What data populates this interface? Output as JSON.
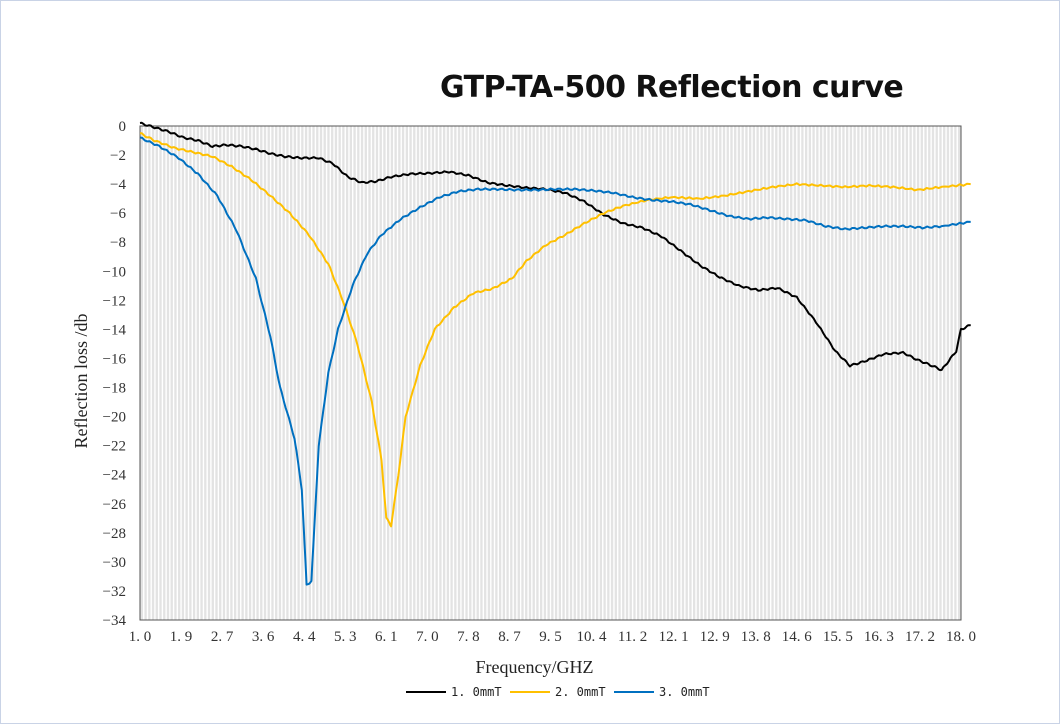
{
  "chart_data": {
    "type": "line",
    "title": "GTP-TA-500 Reflection curve",
    "xlabel": "Frequency/GHZ",
    "ylabel": "Reflection loss /db",
    "xlim": [
      1.0,
      18.0
    ],
    "ylim": [
      -34,
      0
    ],
    "x_tick_labels": [
      "1. 0",
      "1. 9",
      "2. 7",
      "3. 6",
      "4. 4",
      "5. 3",
      "6. 1",
      "7. 0",
      "7. 8",
      "8. 7",
      "9. 5",
      "10. 4",
      "11. 2",
      "12. 1",
      "12. 9",
      "13. 8",
      "14. 6",
      "15. 5",
      "16. 3",
      "17. 2",
      "18. 0"
    ],
    "y_ticks": [
      0,
      -2,
      -4,
      -6,
      -8,
      -10,
      -12,
      -14,
      -16,
      -18,
      -20,
      -22,
      -24,
      -26,
      -28,
      -30,
      -32,
      -34
    ],
    "y_tick_labels": [
      "0",
      "−2",
      "−4",
      "−6",
      "−8",
      "−10",
      "−12",
      "−14",
      "−16",
      "−18",
      "−20",
      "−22",
      "−24",
      "−26",
      "−28",
      "−30",
      "−32",
      "−34"
    ],
    "grid": "vertical",
    "legend_position": "bottom",
    "series": [
      {
        "name": "1. 0mmT",
        "color": "#000000",
        "points": [
          [
            1.0,
            0.2
          ],
          [
            1.3,
            -0.1
          ],
          [
            1.6,
            -0.4
          ],
          [
            1.9,
            -0.8
          ],
          [
            2.2,
            -1.0
          ],
          [
            2.5,
            -1.4
          ],
          [
            2.8,
            -1.3
          ],
          [
            3.1,
            -1.4
          ],
          [
            3.4,
            -1.6
          ],
          [
            3.7,
            -1.9
          ],
          [
            4.0,
            -2.1
          ],
          [
            4.3,
            -2.2
          ],
          [
            4.7,
            -2.2
          ],
          [
            5.0,
            -2.6
          ],
          [
            5.3,
            -3.5
          ],
          [
            5.6,
            -3.9
          ],
          [
            5.9,
            -3.8
          ],
          [
            6.2,
            -3.5
          ],
          [
            6.6,
            -3.3
          ],
          [
            7.0,
            -3.25
          ],
          [
            7.4,
            -3.15
          ],
          [
            7.8,
            -3.4
          ],
          [
            8.2,
            -3.9
          ],
          [
            8.6,
            -4.1
          ],
          [
            9.0,
            -4.25
          ],
          [
            9.4,
            -4.35
          ],
          [
            9.8,
            -4.6
          ],
          [
            10.2,
            -5.2
          ],
          [
            10.6,
            -6.1
          ],
          [
            11.0,
            -6.7
          ],
          [
            11.4,
            -7.0
          ],
          [
            11.8,
            -7.6
          ],
          [
            12.2,
            -8.6
          ],
          [
            12.6,
            -9.6
          ],
          [
            13.0,
            -10.4
          ],
          [
            13.4,
            -11.0
          ],
          [
            13.8,
            -11.3
          ],
          [
            14.2,
            -11.15
          ],
          [
            14.6,
            -11.8
          ],
          [
            15.0,
            -13.5
          ],
          [
            15.4,
            -15.5
          ],
          [
            15.7,
            -16.5
          ],
          [
            16.0,
            -16.2
          ],
          [
            16.4,
            -15.7
          ],
          [
            16.8,
            -15.6
          ],
          [
            17.1,
            -16.1
          ],
          [
            17.4,
            -16.5
          ],
          [
            17.6,
            -16.8
          ],
          [
            17.9,
            -15.5
          ],
          [
            18.0,
            -14.0
          ],
          [
            18.2,
            -13.7
          ]
        ],
        "minimum": {
          "x": 17.6,
          "y": -16.8
        }
      },
      {
        "name": "2. 0mmT",
        "color": "#FFC000",
        "points": [
          [
            1.0,
            -0.5
          ],
          [
            1.3,
            -1.0
          ],
          [
            1.7,
            -1.5
          ],
          [
            2.1,
            -1.8
          ],
          [
            2.5,
            -2.1
          ],
          [
            2.9,
            -2.8
          ],
          [
            3.3,
            -3.7
          ],
          [
            3.7,
            -4.8
          ],
          [
            4.1,
            -6.0
          ],
          [
            4.5,
            -7.5
          ],
          [
            4.9,
            -9.5
          ],
          [
            5.2,
            -12.0
          ],
          [
            5.5,
            -15.0
          ],
          [
            5.8,
            -19.0
          ],
          [
            6.0,
            -23.0
          ],
          [
            6.1,
            -27.0
          ],
          [
            6.2,
            -27.5
          ],
          [
            6.35,
            -24.0
          ],
          [
            6.5,
            -20.0
          ],
          [
            6.8,
            -16.5
          ],
          [
            7.1,
            -14.0
          ],
          [
            7.5,
            -12.5
          ],
          [
            7.9,
            -11.5
          ],
          [
            8.3,
            -11.2
          ],
          [
            8.7,
            -10.5
          ],
          [
            9.0,
            -9.3
          ],
          [
            9.4,
            -8.2
          ],
          [
            9.8,
            -7.5
          ],
          [
            10.2,
            -6.7
          ],
          [
            10.6,
            -6.0
          ],
          [
            11.0,
            -5.5
          ],
          [
            11.5,
            -5.1
          ],
          [
            12.0,
            -4.9
          ],
          [
            12.6,
            -5.0
          ],
          [
            13.1,
            -4.8
          ],
          [
            13.6,
            -4.5
          ],
          [
            14.1,
            -4.2
          ],
          [
            14.6,
            -4.0
          ],
          [
            15.1,
            -4.1
          ],
          [
            15.6,
            -4.2
          ],
          [
            16.1,
            -4.1
          ],
          [
            16.6,
            -4.2
          ],
          [
            17.1,
            -4.4
          ],
          [
            17.6,
            -4.2
          ],
          [
            18.2,
            -4.0
          ]
        ],
        "minimum": {
          "x": 6.2,
          "y": -27.5
        }
      },
      {
        "name": "3. 0mmT",
        "color": "#0070C0",
        "points": [
          [
            1.0,
            -0.8
          ],
          [
            1.4,
            -1.4
          ],
          [
            1.8,
            -2.2
          ],
          [
            2.2,
            -3.3
          ],
          [
            2.6,
            -4.8
          ],
          [
            3.0,
            -7.2
          ],
          [
            3.4,
            -10.5
          ],
          [
            3.7,
            -14.5
          ],
          [
            3.9,
            -18.0
          ],
          [
            4.2,
            -21.5
          ],
          [
            4.35,
            -25.0
          ],
          [
            4.45,
            -31.6
          ],
          [
            4.55,
            -31.3
          ],
          [
            4.7,
            -22.0
          ],
          [
            4.9,
            -17.0
          ],
          [
            5.1,
            -14.0
          ],
          [
            5.4,
            -11.0
          ],
          [
            5.7,
            -8.8
          ],
          [
            6.0,
            -7.5
          ],
          [
            6.4,
            -6.4
          ],
          [
            6.8,
            -5.6
          ],
          [
            7.2,
            -4.9
          ],
          [
            7.6,
            -4.5
          ],
          [
            8.0,
            -4.35
          ],
          [
            8.4,
            -4.35
          ],
          [
            8.8,
            -4.4
          ],
          [
            9.2,
            -4.4
          ],
          [
            9.6,
            -4.35
          ],
          [
            10.0,
            -4.35
          ],
          [
            10.4,
            -4.45
          ],
          [
            10.8,
            -4.6
          ],
          [
            11.2,
            -4.9
          ],
          [
            11.6,
            -5.1
          ],
          [
            12.0,
            -5.2
          ],
          [
            12.4,
            -5.4
          ],
          [
            12.8,
            -5.8
          ],
          [
            13.2,
            -6.2
          ],
          [
            13.6,
            -6.4
          ],
          [
            14.0,
            -6.3
          ],
          [
            14.4,
            -6.4
          ],
          [
            14.8,
            -6.5
          ],
          [
            15.2,
            -6.9
          ],
          [
            15.6,
            -7.1
          ],
          [
            16.0,
            -7.0
          ],
          [
            16.4,
            -6.9
          ],
          [
            16.8,
            -6.9
          ],
          [
            17.2,
            -7.0
          ],
          [
            17.6,
            -6.9
          ],
          [
            18.2,
            -6.6
          ]
        ],
        "minimum": {
          "x": 4.45,
          "y": -31.6
        }
      }
    ]
  }
}
